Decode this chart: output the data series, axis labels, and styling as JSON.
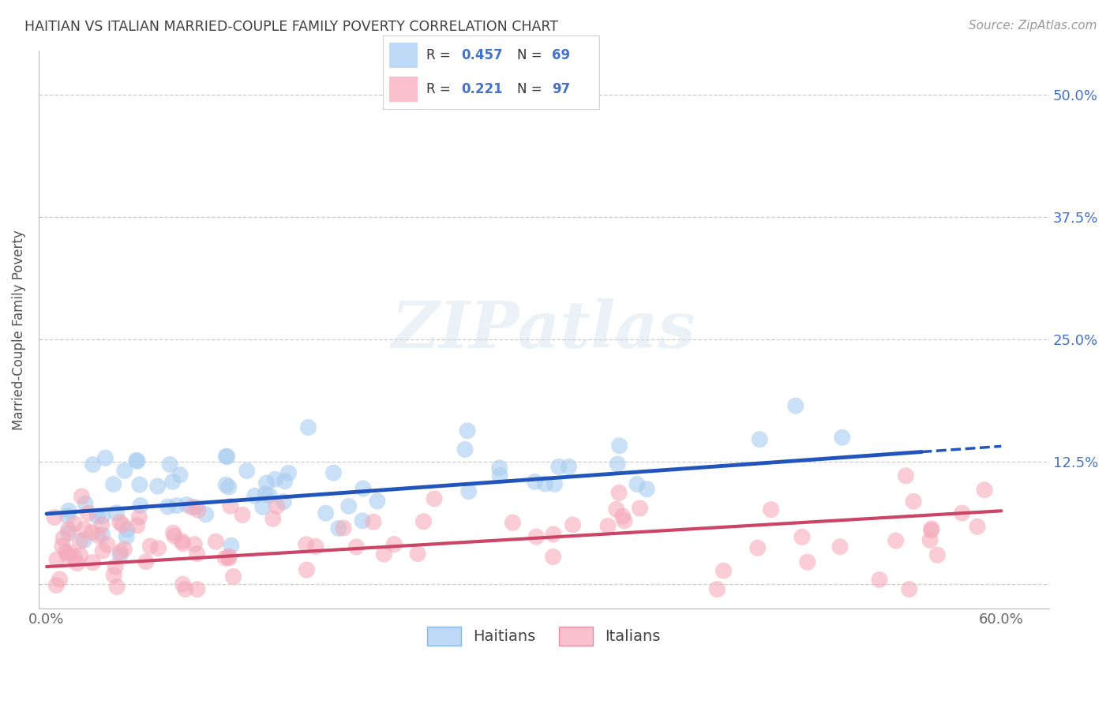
{
  "title": "HAITIAN VS ITALIAN MARRIED-COUPLE FAMILY POVERTY CORRELATION CHART",
  "source": "Source: ZipAtlas.com",
  "ylabel": "Married-Couple Family Poverty",
  "xlim": [
    -0.005,
    0.63
  ],
  "ylim": [
    -0.025,
    0.545
  ],
  "haitian_R": 0.457,
  "haitian_N": 69,
  "italian_R": 0.221,
  "italian_N": 97,
  "haitian_color": "#A8CCF0",
  "italian_color": "#F5AABB",
  "haitian_line_color": "#2255BB",
  "italian_line_color": "#CC4466",
  "haitian_legend_color": "#BDD9F7",
  "italian_legend_color": "#FAC0CC",
  "legend_label_haitian": "Haitians",
  "legend_label_italian": "Italians",
  "watermark_text": "ZIPatlas",
  "background_color": "#ffffff",
  "grid_color": "#cccccc",
  "title_color": "#404040",
  "source_color": "#999999",
  "ytick_vals": [
    0.0,
    0.125,
    0.25,
    0.375,
    0.5
  ],
  "ytick_labels": [
    "",
    "12.5%",
    "25.0%",
    "37.5%",
    "50.0%"
  ],
  "xtick_vals": [
    0.0,
    0.12,
    0.24,
    0.36,
    0.48,
    0.6
  ],
  "xtick_labels": [
    "0.0%",
    "",
    "",
    "",
    "",
    "60.0%"
  ],
  "R_label_color": "#4472C4",
  "haitian_line_intercept": 0.072,
  "haitian_line_slope": 0.115,
  "italian_line_intercept": 0.018,
  "italian_line_slope": 0.095
}
